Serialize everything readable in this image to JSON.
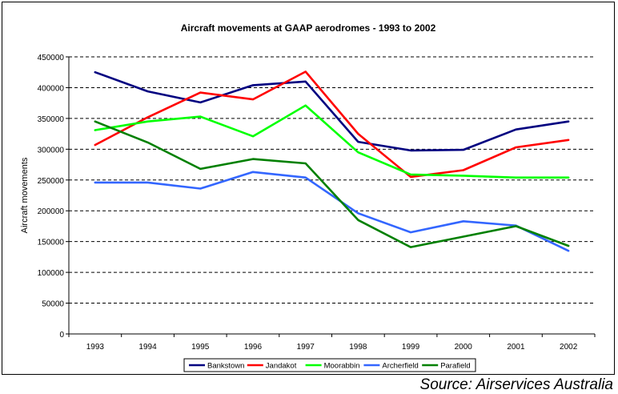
{
  "chart_data": {
    "type": "line",
    "title": "Aircraft movements at GAAP aerodromes - 1993 to 2002",
    "xlabel": "",
    "ylabel": "Aircraft movements",
    "categories": [
      "1993",
      "1994",
      "1995",
      "1996",
      "1997",
      "1998",
      "1999",
      "2000",
      "2001",
      "2002"
    ],
    "ylim": [
      0,
      450000
    ],
    "yticks": [
      "0",
      "50000",
      "100000",
      "150000",
      "200000",
      "250000",
      "300000",
      "350000",
      "400000",
      "450000"
    ],
    "grid": "horizontal dashed",
    "legend_position": "bottom",
    "series": [
      {
        "name": "Bankstown",
        "color": "#000080",
        "values": [
          425000,
          394000,
          376000,
          404000,
          410000,
          312000,
          298000,
          299000,
          332000,
          345000
        ]
      },
      {
        "name": "Jandakot",
        "color": "#ff0000",
        "values": [
          307000,
          352000,
          392000,
          381000,
          426000,
          325000,
          255000,
          266000,
          303000,
          315000
        ]
      },
      {
        "name": "Moorabbin",
        "color": "#00ff00",
        "values": [
          331000,
          345000,
          353000,
          321000,
          371000,
          295000,
          259000,
          257000,
          254000,
          254000
        ]
      },
      {
        "name": "Archerfield",
        "color": "#3366ff",
        "values": [
          246000,
          246000,
          236000,
          263000,
          254000,
          196000,
          165000,
          183000,
          176000,
          135000
        ]
      },
      {
        "name": "Parafield",
        "color": "#008000",
        "values": [
          345000,
          311000,
          268000,
          284000,
          277000,
          185000,
          141000,
          158000,
          175000,
          143000
        ]
      }
    ]
  },
  "source_note": "Source: Airservices Australia"
}
